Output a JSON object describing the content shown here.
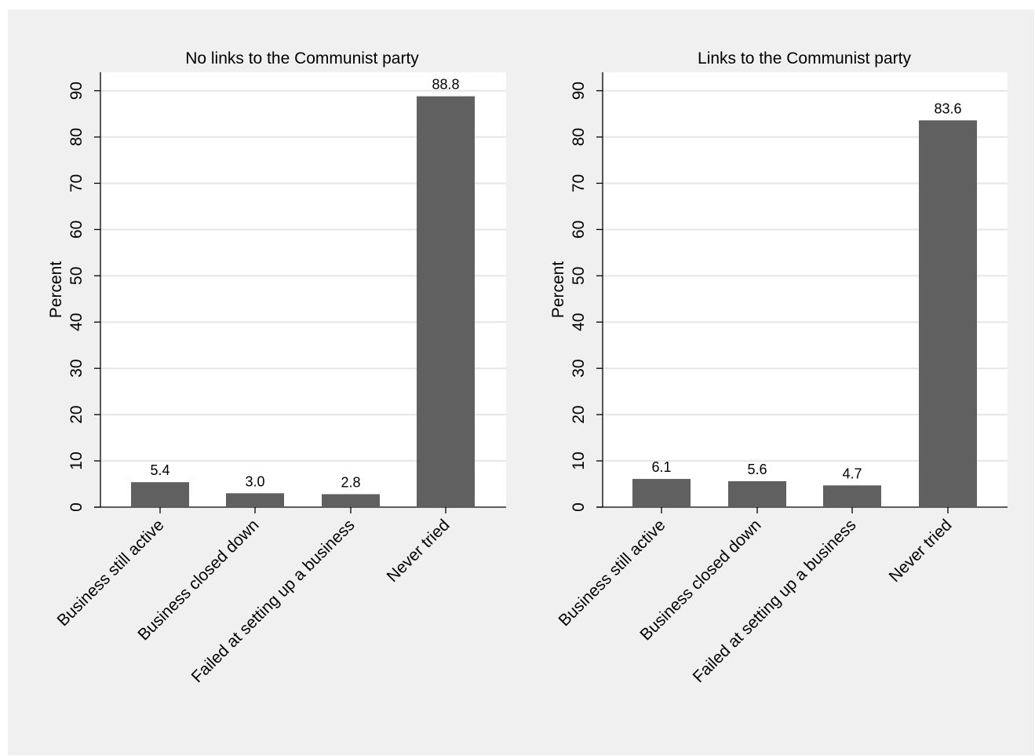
{
  "colors": {
    "background": "#f0f0f0",
    "plot_background": "#ffffff",
    "bar": "#606060",
    "grid": "#e6e6e6",
    "axis": "#000000"
  },
  "chart_data": [
    {
      "type": "bar",
      "title": "No links to the Communist party",
      "ylabel": "Percent",
      "xlabel": "",
      "categories": [
        "Business still active",
        "Business closed down",
        "Failed at setting up a business",
        "Never tried"
      ],
      "values": [
        5.4,
        3.0,
        2.8,
        88.8
      ],
      "value_labels": [
        "5.4",
        "3.0",
        "2.8",
        "88.8"
      ],
      "ylim": [
        0,
        94
      ],
      "yticks": [
        0,
        10,
        20,
        30,
        40,
        50,
        60,
        70,
        80,
        90
      ],
      "grid": true
    },
    {
      "type": "bar",
      "title": "Links to the Communist party",
      "ylabel": "Percent",
      "xlabel": "",
      "categories": [
        "Business still active",
        "Business closed down",
        "Failed at setting up a business",
        "Never tried"
      ],
      "values": [
        6.1,
        5.6,
        4.7,
        83.6
      ],
      "value_labels": [
        "6.1",
        "5.6",
        "4.7",
        "83.6"
      ],
      "ylim": [
        0,
        94
      ],
      "yticks": [
        0,
        10,
        20,
        30,
        40,
        50,
        60,
        70,
        80,
        90
      ],
      "grid": true
    }
  ]
}
